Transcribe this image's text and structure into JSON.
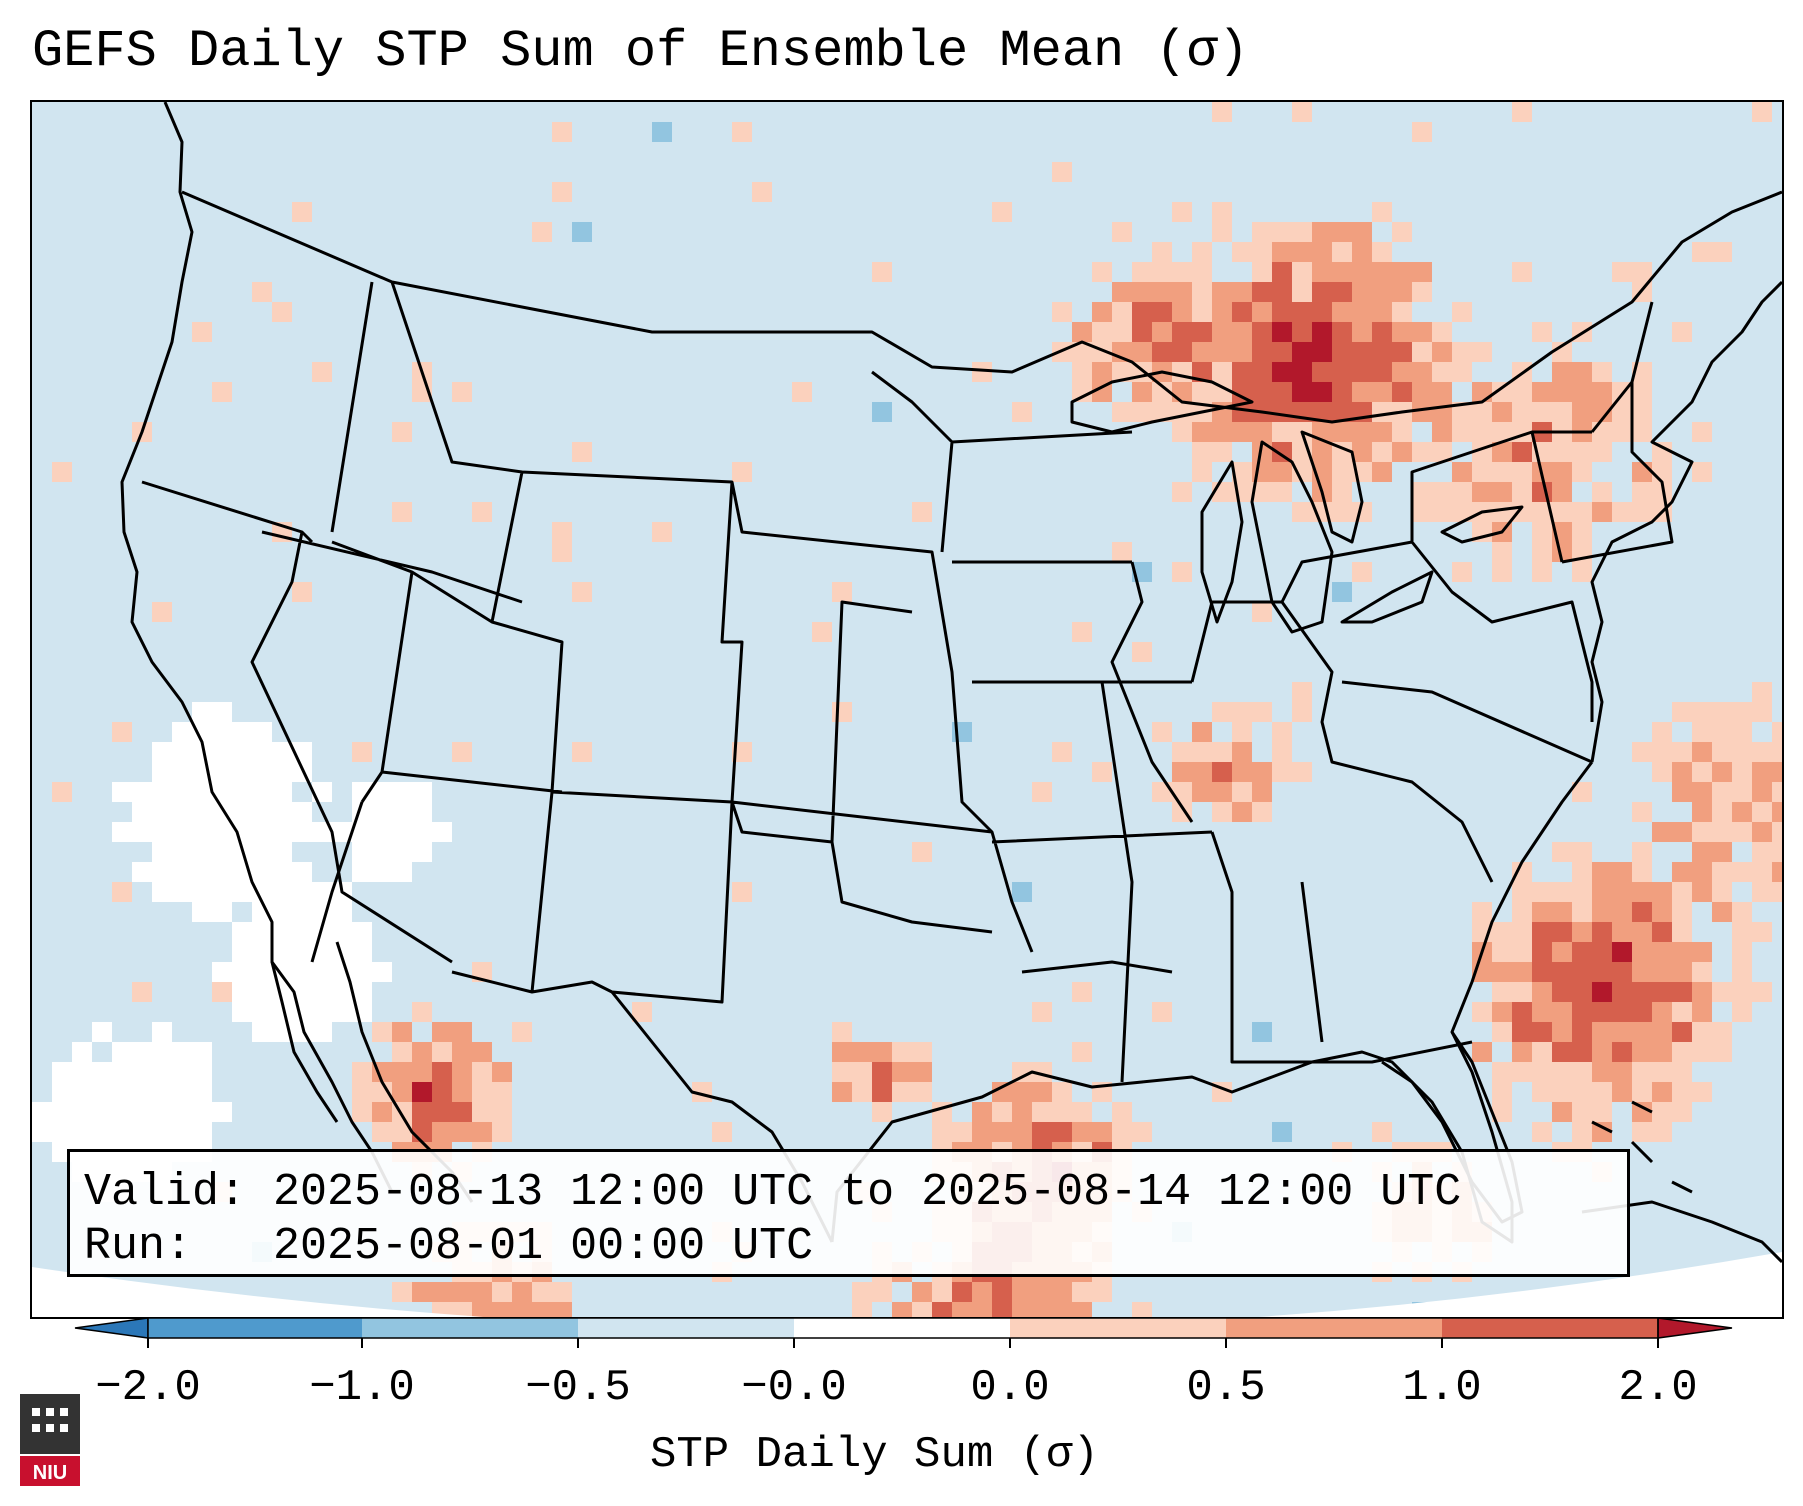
{
  "title": "GEFS Daily STP Sum of Ensemble Mean (σ)",
  "valid_line": "Valid: 2025-08-13 12:00 UTC to 2025-08-14 12:00 UTC",
  "run_line": "Run:   2025-08-01 00:00 UTC",
  "colorbar": {
    "label": "STP Daily Sum (σ)",
    "ticks": [
      "−2.0",
      "−1.0",
      "−0.5",
      "−0.0",
      "0.0",
      "0.5",
      "1.0",
      "2.0"
    ],
    "colors": [
      "#2b77b8",
      "#4f9acd",
      "#92c5e0",
      "#d1e5f0",
      "#ffffff",
      "#fbd1bd",
      "#f19f7f",
      "#d6604d",
      "#b2182b"
    ]
  },
  "logo": {
    "text": "NIU"
  },
  "map": {
    "ocean_color": "#d1e5f0",
    "level_colors": [
      "#d1e5f0",
      "#fbd1bd",
      "#f19f7f",
      "#d6604d",
      "#b2182b",
      "#ffffff",
      "#92c5e0"
    ]
  }
}
